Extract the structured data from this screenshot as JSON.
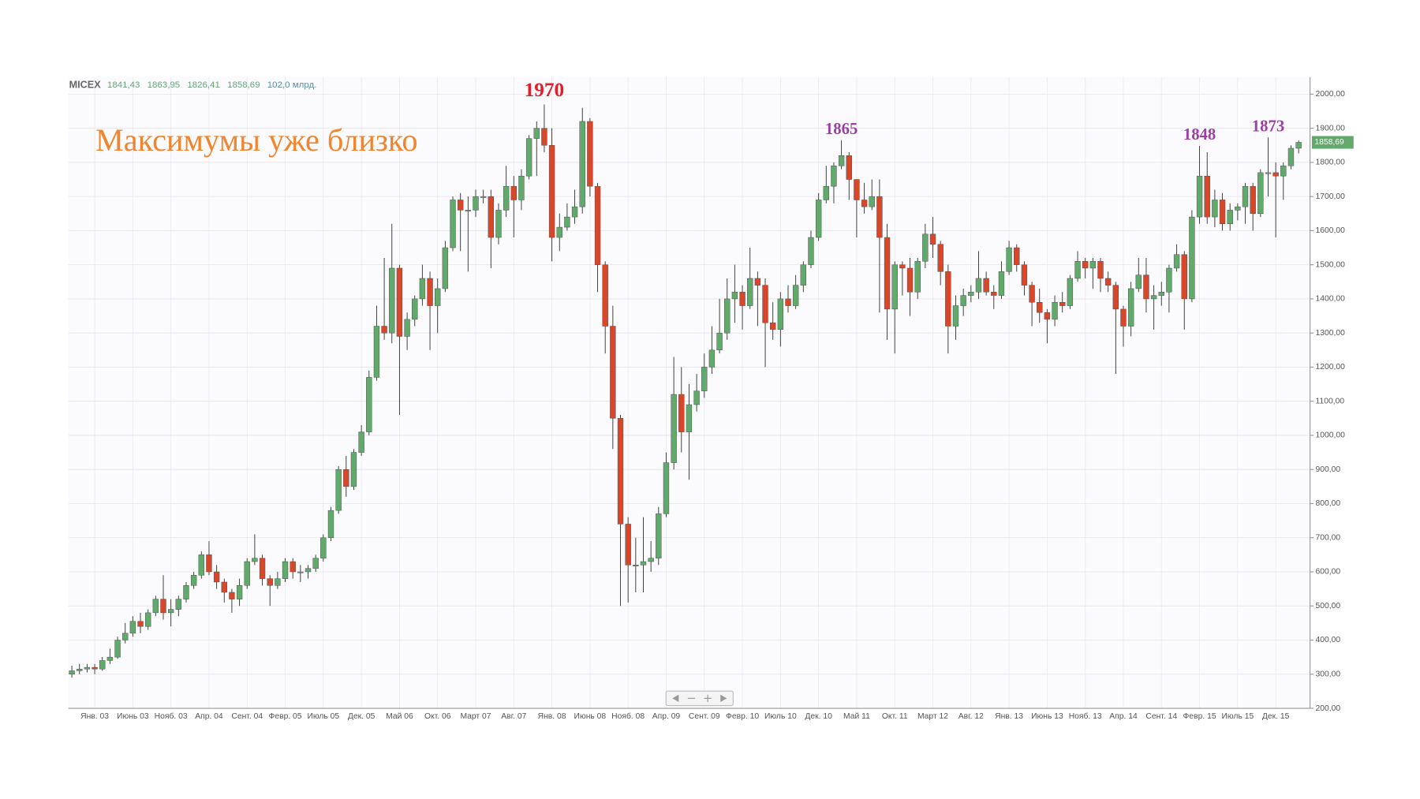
{
  "chart_data": {
    "type": "candlestick",
    "title": "Максимумы уже близко",
    "header": {
      "symbol": "MICEX",
      "values": [
        "1841,43",
        "1863,95",
        "1826,41",
        "1858,69"
      ],
      "volume": "102,0 млрд."
    },
    "last_label": "1858,69",
    "up_color": "#62aa6c",
    "down_color": "#d9472b",
    "annotations": [
      {
        "text": "1970",
        "color": "#e0202a"
      },
      {
        "text": "1865",
        "color": "#9b3fa0"
      },
      {
        "text": "1848",
        "color": "#9b3fa0"
      },
      {
        "text": "1873",
        "color": "#9b3fa0"
      }
    ],
    "categories": [
      null,
      null,
      null,
      "Янв. 03",
      null,
      null,
      null,
      null,
      "Июнь 03",
      null,
      null,
      null,
      null,
      "Нояб. 03",
      null,
      null,
      null,
      null,
      "Апр. 04",
      null,
      null,
      null,
      null,
      "Сент. 04",
      null,
      null,
      null,
      null,
      "Февр. 05",
      null,
      null,
      null,
      null,
      "Июль 05",
      null,
      null,
      null,
      null,
      "Дек. 05",
      null,
      null,
      null,
      null,
      "Май 06",
      null,
      null,
      null,
      null,
      "Окт. 06",
      null,
      null,
      null,
      null,
      "Март 07",
      null,
      null,
      null,
      null,
      "Авг. 07",
      null,
      null,
      null,
      null,
      "Янв. 08",
      null,
      null,
      null,
      null,
      "Июнь 08",
      null,
      null,
      null,
      null,
      "Нояб. 08",
      null,
      null,
      null,
      null,
      "Апр. 09",
      null,
      null,
      null,
      null,
      "Сент. 09",
      null,
      null,
      null,
      null,
      "Февр. 10",
      null,
      null,
      null,
      null,
      "Июль 10",
      null,
      null,
      null,
      null,
      "Дек. 10",
      null,
      null,
      null,
      null,
      "Май 11",
      null,
      null,
      null,
      null,
      "Окт. 11",
      null,
      null,
      null,
      null,
      "Март 12",
      null,
      null,
      null,
      null,
      "Авг. 12",
      null,
      null,
      null,
      null,
      "Янв. 13",
      null,
      null,
      null,
      null,
      "Июнь 13",
      null,
      null,
      null,
      null,
      "Нояб. 13",
      null,
      null,
      null,
      null,
      "Апр. 14",
      null,
      null,
      null,
      null,
      "Сент. 14",
      null,
      null,
      null,
      null,
      "Февр. 15",
      null,
      null,
      null,
      null,
      "Июль 15",
      null,
      null,
      null,
      null,
      "Дек. 15",
      null,
      null,
      null
    ],
    "open": [
      300,
      310,
      315,
      320,
      315,
      340,
      350,
      400,
      420,
      455,
      440,
      480,
      520,
      480,
      490,
      520,
      560,
      590,
      650,
      600,
      570,
      540,
      520,
      560,
      630,
      640,
      580,
      560,
      580,
      630,
      600,
      600,
      610,
      640,
      700,
      780,
      900,
      850,
      950,
      1010,
      1170,
      1320,
      1300,
      1490,
      1290,
      1340,
      1400,
      1460,
      1380,
      1430,
      1550,
      1690,
      1660,
      1660,
      1700,
      1700,
      1580,
      1660,
      1730,
      1690,
      1760,
      1870,
      1900,
      1850,
      1580,
      1610,
      1640,
      1670,
      1920,
      1730,
      1500,
      1320,
      1050,
      740,
      620,
      620,
      630,
      640,
      770,
      920,
      1120,
      1010,
      1090,
      1130,
      1200,
      1250,
      1300,
      1400,
      1420,
      1380,
      1460,
      1440,
      1330,
      1310,
      1400,
      1380,
      1440,
      1500,
      1580,
      1690,
      1730,
      1790,
      1820,
      1750,
      1690,
      1670,
      1700,
      1580,
      1370,
      1500,
      1490,
      1420,
      1510,
      1590,
      1560,
      1480,
      1320,
      1380,
      1410,
      1420,
      1460,
      1420,
      1410,
      1480,
      1550,
      1500,
      1440,
      1390,
      1360,
      1340,
      1390,
      1380,
      1460,
      1510,
      1490,
      1510,
      1460,
      1440,
      1370,
      1320,
      1430,
      1470,
      1400,
      1410,
      1420,
      1490,
      1530,
      1400,
      1640,
      1760,
      1640,
      1690,
      1620,
      1660,
      1670,
      1730,
      1650,
      1770,
      1770,
      1760,
      1790,
      1841.43
    ],
    "high": [
      325,
      330,
      330,
      330,
      350,
      375,
      410,
      450,
      470,
      480,
      490,
      530,
      590,
      520,
      530,
      570,
      600,
      660,
      690,
      620,
      580,
      550,
      580,
      640,
      710,
      650,
      590,
      600,
      640,
      640,
      620,
      620,
      650,
      710,
      790,
      910,
      940,
      960,
      1030,
      1190,
      1380,
      1520,
      1620,
      1500,
      1360,
      1410,
      1500,
      1480,
      1460,
      1570,
      1700,
      1710,
      1700,
      1720,
      1720,
      1720,
      1680,
      1790,
      1760,
      1780,
      1880,
      1920,
      1970,
      1900,
      1650,
      1680,
      1720,
      1960,
      1930,
      1740,
      1510,
      1380,
      1060,
      760,
      700,
      760,
      690,
      790,
      950,
      1230,
      1200,
      1150,
      1180,
      1240,
      1320,
      1400,
      1460,
      1500,
      1440,
      1550,
      1480,
      1460,
      1390,
      1420,
      1440,
      1470,
      1510,
      1600,
      1710,
      1790,
      1800,
      1865,
      1830,
      1750,
      1740,
      1750,
      1750,
      1620,
      1510,
      1510,
      1520,
      1520,
      1620,
      1640,
      1570,
      1500,
      1410,
      1430,
      1440,
      1540,
      1480,
      1440,
      1510,
      1570,
      1560,
      1510,
      1450,
      1430,
      1370,
      1410,
      1420,
      1470,
      1540,
      1520,
      1520,
      1520,
      1480,
      1450,
      1380,
      1450,
      1520,
      1520,
      1440,
      1450,
      1500,
      1560,
      1540,
      1660,
      1848,
      1830,
      1720,
      1710,
      1680,
      1680,
      1740,
      1740,
      1780,
      1873,
      1800,
      1800,
      1850,
      1863.95
    ],
    "low": [
      290,
      300,
      305,
      300,
      310,
      330,
      345,
      390,
      410,
      420,
      430,
      470,
      460,
      440,
      470,
      510,
      550,
      580,
      590,
      550,
      510,
      480,
      500,
      550,
      620,
      560,
      500,
      550,
      570,
      580,
      570,
      580,
      600,
      630,
      690,
      770,
      820,
      840,
      940,
      1000,
      1160,
      1280,
      1270,
      1060,
      1250,
      1320,
      1380,
      1250,
      1300,
      1420,
      1540,
      1540,
      1480,
      1640,
      1680,
      1490,
      1560,
      1640,
      1580,
      1660,
      1750,
      1760,
      1830,
      1510,
      1540,
      1600,
      1620,
      1650,
      1700,
      1420,
      1240,
      960,
      500,
      510,
      540,
      540,
      600,
      620,
      760,
      900,
      950,
      870,
      1070,
      1110,
      1180,
      1240,
      1280,
      1330,
      1310,
      1370,
      1320,
      1200,
      1280,
      1260,
      1360,
      1370,
      1420,
      1490,
      1570,
      1680,
      1680,
      1780,
      1690,
      1580,
      1650,
      1660,
      1360,
      1280,
      1240,
      1410,
      1350,
      1400,
      1490,
      1520,
      1440,
      1240,
      1280,
      1350,
      1390,
      1400,
      1410,
      1370,
      1400,
      1470,
      1480,
      1410,
      1320,
      1330,
      1270,
      1320,
      1360,
      1370,
      1450,
      1460,
      1430,
      1420,
      1420,
      1180,
      1260,
      1290,
      1420,
      1360,
      1310,
      1380,
      1360,
      1480,
      1310,
      1390,
      1620,
      1620,
      1610,
      1600,
      1600,
      1630,
      1620,
      1600,
      1640,
      1700,
      1580,
      1690,
      1780,
      1826.41
    ],
    "close": [
      310,
      315,
      320,
      315,
      340,
      350,
      400,
      420,
      455,
      440,
      480,
      520,
      480,
      490,
      520,
      560,
      590,
      650,
      600,
      570,
      540,
      520,
      560,
      630,
      640,
      580,
      560,
      580,
      630,
      600,
      600,
      610,
      640,
      700,
      780,
      900,
      850,
      950,
      1010,
      1170,
      1320,
      1300,
      1490,
      1290,
      1340,
      1400,
      1460,
      1380,
      1430,
      1550,
      1690,
      1660,
      1660,
      1700,
      1700,
      1580,
      1660,
      1730,
      1690,
      1760,
      1870,
      1900,
      1850,
      1580,
      1610,
      1640,
      1670,
      1920,
      1730,
      1500,
      1320,
      1050,
      740,
      620,
      620,
      630,
      640,
      770,
      920,
      1120,
      1010,
      1090,
      1130,
      1200,
      1250,
      1300,
      1400,
      1420,
      1380,
      1460,
      1440,
      1330,
      1310,
      1400,
      1380,
      1440,
      1500,
      1580,
      1690,
      1730,
      1790,
      1820,
      1750,
      1690,
      1670,
      1700,
      1580,
      1370,
      1500,
      1490,
      1420,
      1510,
      1590,
      1560,
      1480,
      1320,
      1380,
      1410,
      1420,
      1460,
      1420,
      1410,
      1480,
      1550,
      1500,
      1440,
      1390,
      1360,
      1340,
      1390,
      1380,
      1460,
      1510,
      1490,
      1510,
      1460,
      1440,
      1370,
      1320,
      1430,
      1470,
      1400,
      1410,
      1420,
      1490,
      1530,
      1400,
      1640,
      1760,
      1640,
      1690,
      1620,
      1660,
      1670,
      1730,
      1650,
      1770,
      1770,
      1760,
      1790,
      1841.43,
      1858.69
    ],
    "ylim": [
      200,
      2050
    ],
    "yticks": [
      {
        "value": 200,
        "label": "200,00"
      },
      {
        "value": 300,
        "label": "300,00"
      },
      {
        "value": 400,
        "label": "400,00"
      },
      {
        "value": 500,
        "label": "500,00"
      },
      {
        "value": 600,
        "label": "600,00"
      },
      {
        "value": 700,
        "label": "700,00"
      },
      {
        "value": 800,
        "label": "800,00"
      },
      {
        "value": 900,
        "label": "900,00"
      },
      {
        "value": 1000,
        "label": "1000,00"
      },
      {
        "value": 1100,
        "label": "1100,00"
      },
      {
        "value": 1200,
        "label": "1200,00"
      },
      {
        "value": 1300,
        "label": "1300,00"
      },
      {
        "value": 1400,
        "label": "1400,00"
      },
      {
        "value": 1500,
        "label": "1500,00"
      },
      {
        "value": 1600,
        "label": "1600,00"
      },
      {
        "value": 1700,
        "label": "1700,00"
      },
      {
        "value": 1800,
        "label": "1800,00"
      },
      {
        "value": 1900,
        "label": "1900,00"
      },
      {
        "value": 2000,
        "label": "2000,00"
      }
    ],
    "grid": true
  }
}
